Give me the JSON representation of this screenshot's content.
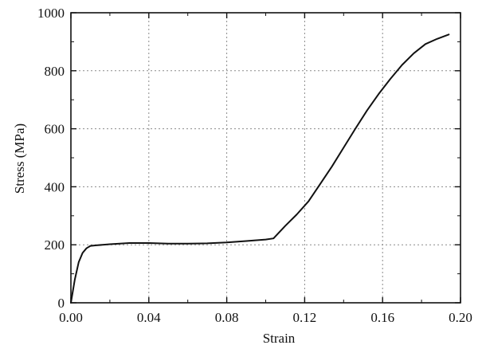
{
  "chart_data": {
    "type": "line",
    "title": "",
    "xlabel": "Strain",
    "ylabel": "Stress (MPa)",
    "xlim": [
      0,
      0.2
    ],
    "ylim": [
      0,
      1000
    ],
    "x_ticks": [
      0,
      0.04,
      0.08,
      0.12,
      0.16,
      0.2
    ],
    "x_tick_labels": [
      "0.00",
      "0.04",
      "0.08",
      "0.12",
      "0.16",
      "0.20"
    ],
    "y_ticks": [
      0,
      200,
      400,
      600,
      800,
      1000
    ],
    "y_tick_labels": [
      "0",
      "200",
      "400",
      "600",
      "800",
      "1000"
    ],
    "grid": true,
    "legend": false,
    "series": [
      {
        "color": "#111111",
        "x": [
          0.0,
          0.001,
          0.002,
          0.004,
          0.006,
          0.008,
          0.01,
          0.013,
          0.02,
          0.03,
          0.04,
          0.05,
          0.06,
          0.07,
          0.08,
          0.09,
          0.1,
          0.104,
          0.11,
          0.116,
          0.122,
          0.128,
          0.134,
          0.14,
          0.146,
          0.152,
          0.158,
          0.164,
          0.17,
          0.176,
          0.182,
          0.188,
          0.194
        ],
        "y": [
          0,
          40,
          80,
          140,
          172,
          188,
          196,
          198,
          202,
          206,
          206,
          204,
          204,
          205,
          208,
          213,
          218,
          222,
          265,
          305,
          350,
          410,
          470,
          535,
          600,
          663,
          720,
          772,
          820,
          860,
          892,
          910,
          925
        ]
      }
    ]
  }
}
